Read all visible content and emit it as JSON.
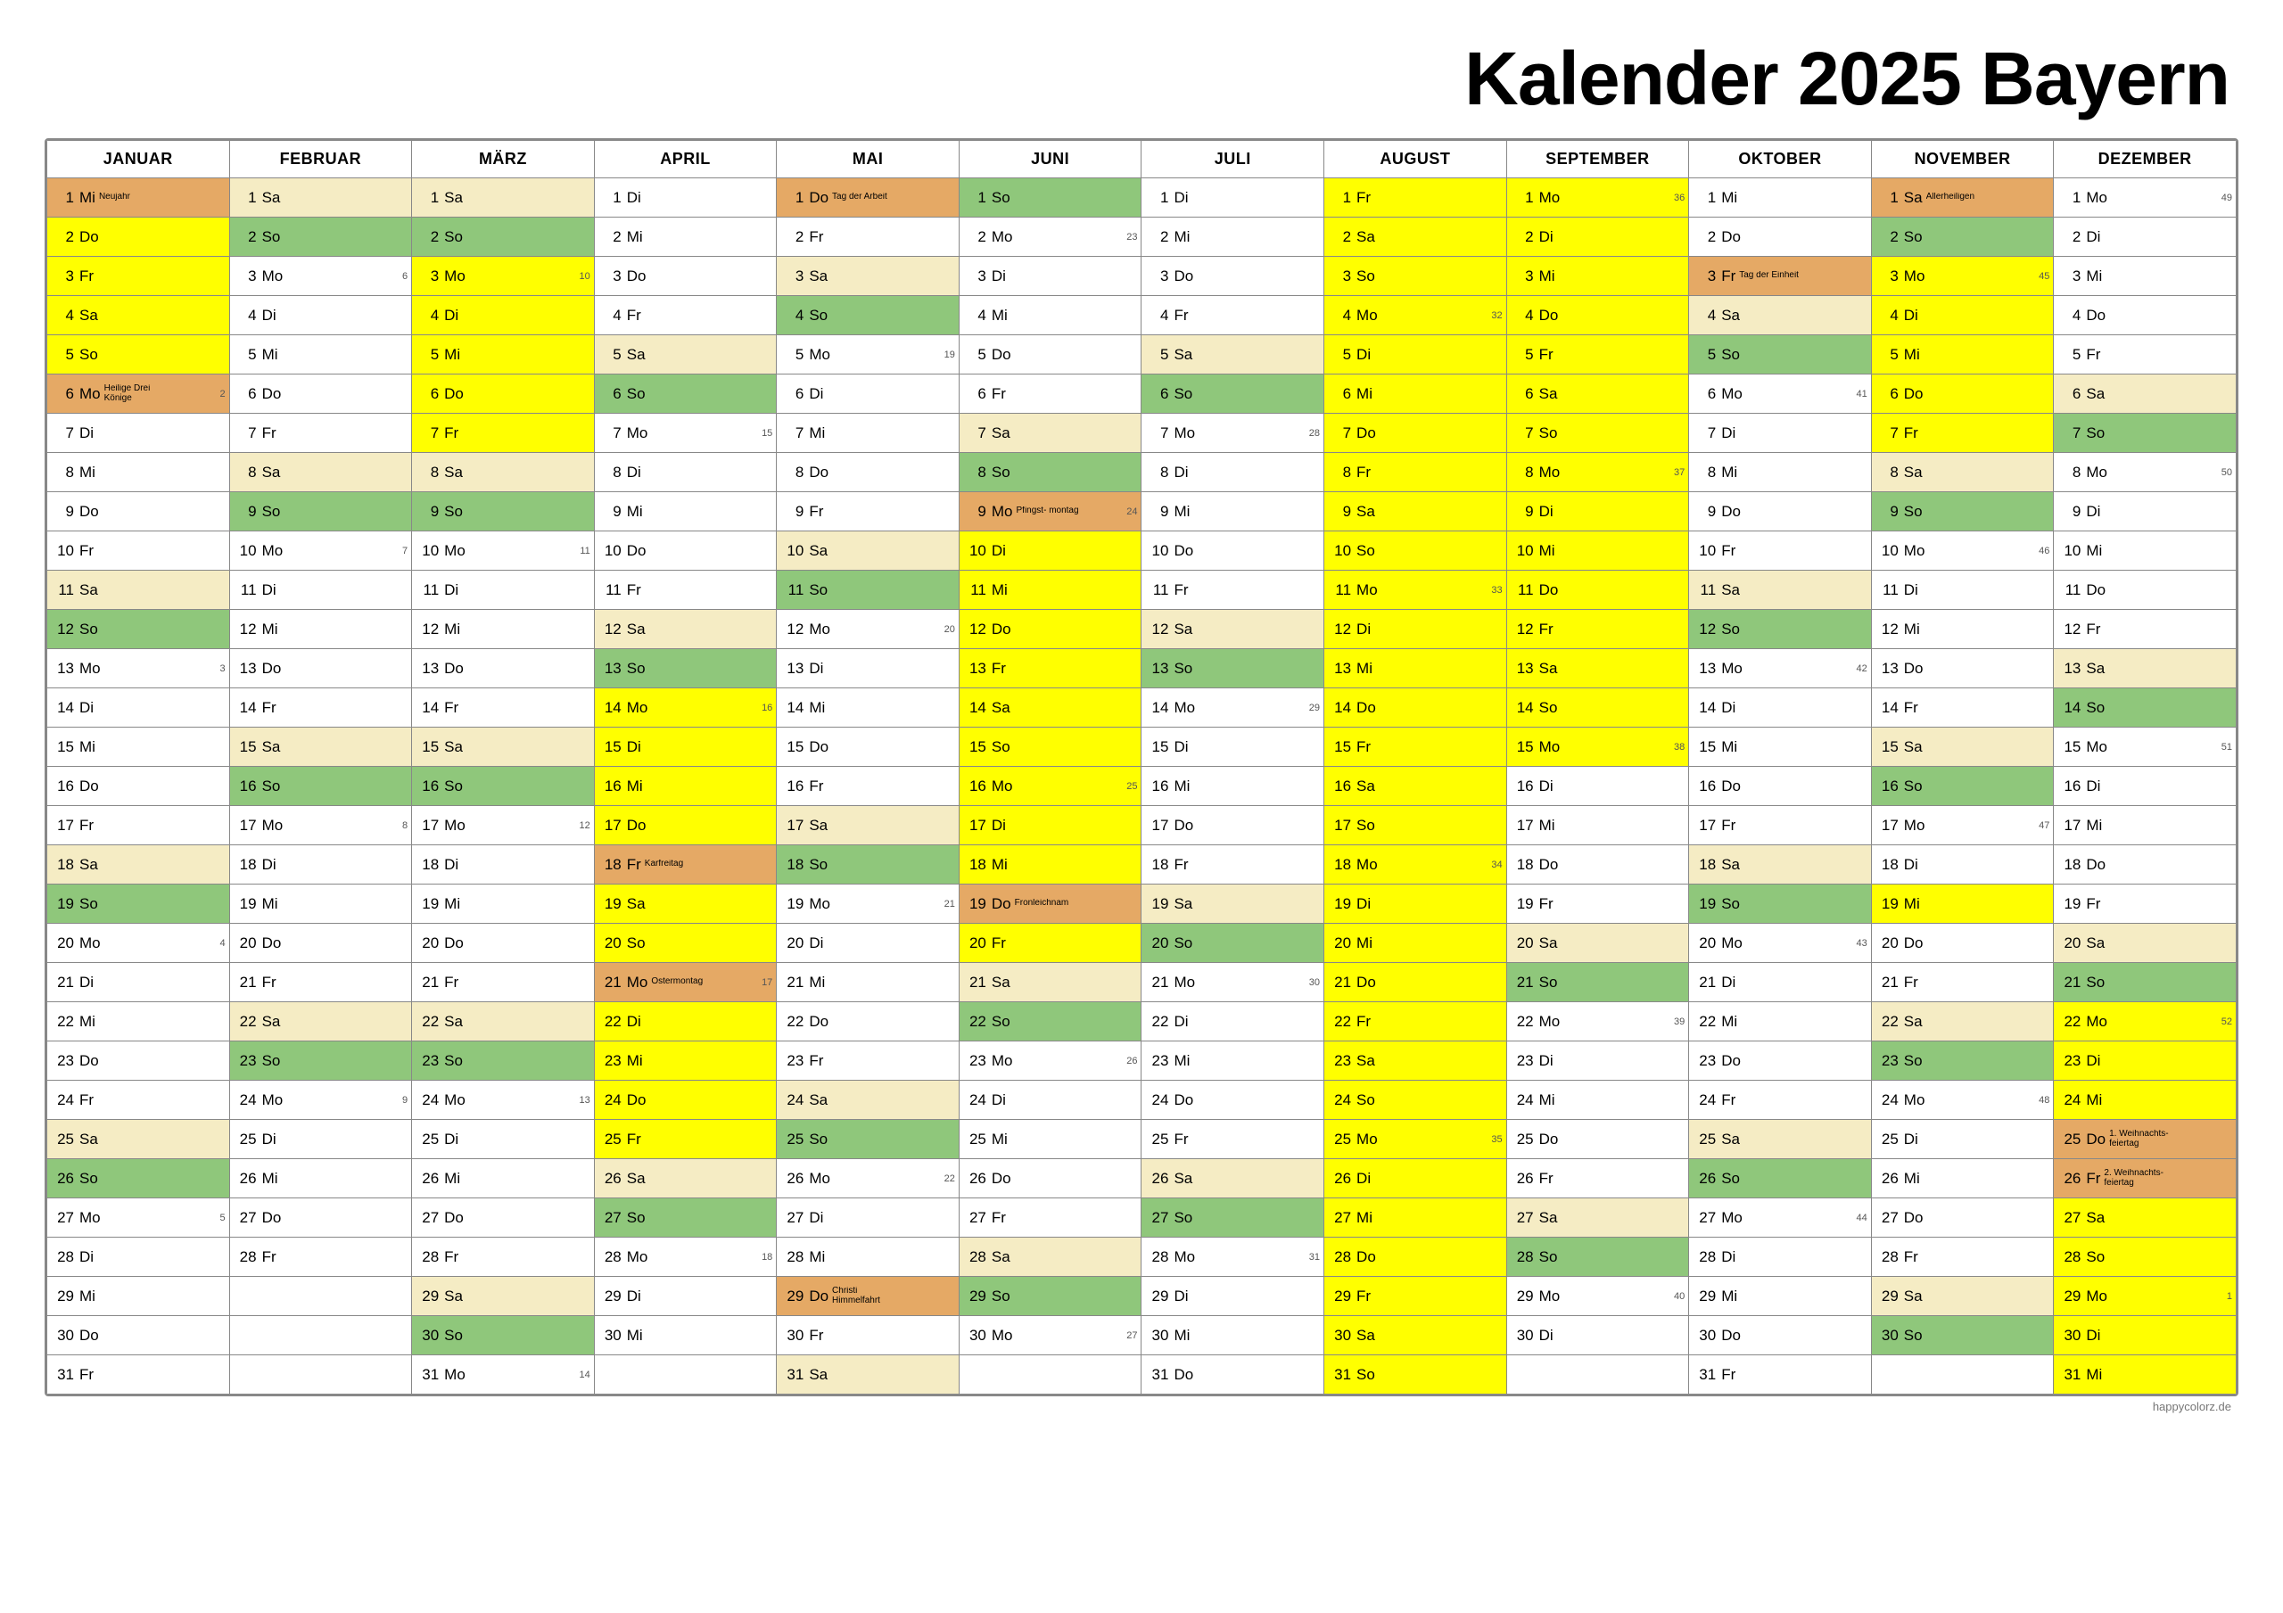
{
  "title": "Kalender 2025 Bayern",
  "footer": "happycolorz.de",
  "colors": {
    "weekend_sat": "#f5ecc4",
    "sunday": "#8fc77b",
    "holiday": "#e5a965",
    "school": "#ffff00",
    "border": "#888888",
    "text": "#000000"
  },
  "months": [
    "JANUAR",
    "FEBRUAR",
    "MÄRZ",
    "APRIL",
    "MAI",
    "JUNI",
    "JULI",
    "AUGUST",
    "SEPTEMBER",
    "OKTOBER",
    "NOVEMBER",
    "DEZEMBER"
  ],
  "days_in_month": [
    31,
    28,
    31,
    30,
    31,
    30,
    31,
    31,
    30,
    31,
    30,
    31
  ],
  "start_dow": [
    2,
    5,
    5,
    1,
    3,
    6,
    1,
    4,
    0,
    2,
    5,
    0
  ],
  "dow_labels": [
    "Mo",
    "Di",
    "Mi",
    "Do",
    "Fr",
    "Sa",
    "So"
  ],
  "type_map": {
    "": "",
    "w": "bg-weekend",
    "s": "bg-sunday",
    "h": "bg-holiday",
    "v": "bg-school"
  },
  "holidays": {
    "0-1": {
      "name": "Neujahr"
    },
    "0-6": {
      "name": "Heilige Drei Könige"
    },
    "4-1": {
      "name": "Tag der Arbeit"
    },
    "5-9": {
      "name": "Pfingst-\nmontag"
    },
    "5-19": {
      "name": "Fronleichnam"
    },
    "3-18": {
      "name": "Karfreitag"
    },
    "3-21": {
      "name": "Ostermontag"
    },
    "4-29": {
      "name": "Christi Himmelfahrt"
    },
    "9-3": {
      "name": "Tag der Einheit"
    },
    "10-1": {
      "name": "Allerheiligen"
    },
    "11-25": {
      "name": "1. Weihnachts-\nfeiertag"
    },
    "11-26": {
      "name": "2. Weihnachts-\nfeiertag"
    }
  },
  "week_labels": {
    "0-6": "2",
    "0-13": "3",
    "0-20": "4",
    "0-27": "5",
    "1-3": "6",
    "1-10": "7",
    "1-17": "8",
    "1-24": "9",
    "2-3": "10",
    "2-10": "11",
    "2-17": "12",
    "2-24": "13",
    "2-31": "14",
    "3-7": "15",
    "3-14": "16",
    "3-21": "17",
    "3-28": "18",
    "4-5": "19",
    "4-12": "20",
    "4-19": "21",
    "4-26": "22",
    "5-2": "23",
    "5-9": "24",
    "5-16": "25",
    "5-23": "26",
    "5-30": "27",
    "6-7": "28",
    "6-14": "29",
    "6-21": "30",
    "6-28": "31",
    "7-4": "32",
    "7-11": "33",
    "7-18": "34",
    "7-25": "35",
    "8-1": "36",
    "8-8": "37",
    "8-15": "38",
    "8-22": "39",
    "8-29": "40",
    "9-6": "41",
    "9-13": "42",
    "9-20": "43",
    "9-27": "44",
    "10-3": "45",
    "10-10": "46",
    "10-17": "47",
    "10-24": "48",
    "11-1": "49",
    "11-8": "50",
    "11-15": "51",
    "11-22": "52",
    "11-29": "1"
  },
  "school_vac": [
    [
      [
        2,
        5
      ]
    ],
    [],
    [
      [
        3,
        7
      ]
    ],
    [
      [
        14,
        25
      ]
    ],
    [],
    [
      [
        10,
        20
      ]
    ],
    [],
    [
      [
        1,
        31
      ]
    ],
    [
      [
        1,
        15
      ]
    ],
    [],
    [
      [
        3,
        7
      ],
      [
        19,
        19
      ]
    ],
    [
      [
        22,
        31
      ]
    ]
  ],
  "explicit_holidays": {
    "0": [
      1,
      6
    ],
    "1": [],
    "2": [],
    "3": [
      18,
      21
    ],
    "4": [
      1,
      29
    ],
    "5": [
      9,
      19
    ],
    "6": [],
    "7": [],
    "8": [],
    "9": [
      3
    ],
    "10": [
      1
    ],
    "11": [
      25,
      26
    ]
  }
}
